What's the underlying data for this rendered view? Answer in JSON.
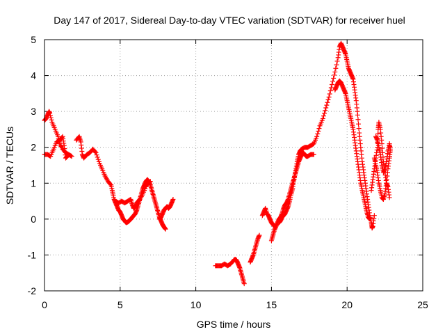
{
  "chart_data": {
    "type": "scatter",
    "title": "Day 147 of 2017, Sidereal Day-to-day VTEC variation (SDTVAR) for receiver huel",
    "xlabel": "GPS time / hours",
    "ylabel": "SDTVAR / TECUs",
    "xlim": [
      0,
      25
    ],
    "ylim": [
      -2,
      5
    ],
    "xticks": [
      0,
      5,
      10,
      15,
      20,
      25
    ],
    "yticks": [
      -2,
      -1,
      0,
      1,
      2,
      3,
      4,
      5
    ],
    "grid": true,
    "marker": "plus",
    "color": "#ff0000",
    "series": [
      {
        "name": "SDTVAR",
        "segments": [
          [
            [
              0.0,
              2.75
            ],
            [
              0.1,
              2.8
            ],
            [
              0.2,
              2.9
            ],
            [
              0.3,
              3.0
            ],
            [
              0.35,
              2.95
            ],
            [
              0.5,
              2.7
            ],
            [
              0.7,
              2.5
            ],
            [
              0.9,
              2.3
            ],
            [
              1.0,
              2.1
            ],
            [
              1.2,
              1.95
            ],
            [
              1.4,
              1.85
            ],
            [
              1.6,
              1.8
            ],
            [
              1.8,
              1.75
            ]
          ],
          [
            [
              0.0,
              1.8
            ],
            [
              0.2,
              1.8
            ],
            [
              0.4,
              1.75
            ],
            [
              0.6,
              1.95
            ],
            [
              0.8,
              2.15
            ],
            [
              1.0,
              2.2
            ],
            [
              1.2,
              2.3
            ],
            [
              1.3,
              2.05
            ],
            [
              1.4,
              1.7
            ],
            [
              1.5,
              1.75
            ]
          ],
          [
            [
              2.1,
              2.2
            ],
            [
              2.3,
              2.3
            ],
            [
              2.4,
              2.15
            ],
            [
              2.5,
              1.8
            ],
            [
              2.6,
              1.7
            ],
            [
              2.8,
              1.8
            ],
            [
              3.0,
              1.85
            ],
            [
              3.2,
              1.95
            ],
            [
              3.4,
              1.85
            ],
            [
              3.6,
              1.6
            ],
            [
              3.8,
              1.4
            ],
            [
              4.0,
              1.2
            ],
            [
              4.2,
              1.05
            ],
            [
              4.4,
              0.95
            ],
            [
              4.5,
              0.75
            ],
            [
              4.6,
              0.55
            ],
            [
              4.7,
              0.45
            ],
            [
              4.8,
              0.35
            ],
            [
              4.9,
              0.25
            ],
            [
              5.0,
              0.2
            ],
            [
              5.1,
              0.1
            ],
            [
              5.2,
              0.0
            ],
            [
              5.3,
              -0.05
            ],
            [
              5.4,
              -0.1
            ],
            [
              5.5,
              -0.08
            ],
            [
              5.6,
              -0.05
            ],
            [
              5.7,
              0.0
            ],
            [
              5.8,
              0.05
            ],
            [
              5.9,
              0.1
            ],
            [
              6.0,
              0.15
            ],
            [
              6.1,
              0.25
            ],
            [
              6.2,
              0.4
            ],
            [
              6.3,
              0.55
            ],
            [
              6.4,
              0.7
            ],
            [
              6.5,
              0.85
            ],
            [
              6.6,
              0.95
            ],
            [
              6.7,
              1.05
            ],
            [
              6.8,
              1.1
            ],
            [
              6.9,
              1.05
            ],
            [
              7.0,
              0.95
            ],
            [
              7.1,
              0.8
            ],
            [
              7.2,
              0.65
            ],
            [
              7.3,
              0.5
            ],
            [
              7.4,
              0.35
            ],
            [
              7.5,
              0.2
            ],
            [
              7.6,
              0.05
            ],
            [
              7.7,
              -0.05
            ],
            [
              7.8,
              -0.15
            ],
            [
              7.9,
              -0.22
            ],
            [
              8.0,
              -0.28
            ]
          ],
          [
            [
              4.7,
              0.5
            ],
            [
              4.9,
              0.45
            ],
            [
              5.1,
              0.5
            ],
            [
              5.3,
              0.45
            ],
            [
              5.5,
              0.5
            ],
            [
              5.7,
              0.55
            ],
            [
              5.8,
              0.4
            ],
            [
              5.9,
              0.3
            ],
            [
              6.0,
              0.35
            ],
            [
              6.1,
              0.45
            ],
            [
              6.2,
              0.5
            ],
            [
              6.3,
              0.55
            ],
            [
              6.5,
              0.7
            ],
            [
              6.7,
              0.9
            ],
            [
              6.8,
              1.0
            ],
            [
              7.0,
              1.05
            ]
          ],
          [
            [
              7.6,
              0.0
            ],
            [
              7.7,
              0.05
            ],
            [
              7.8,
              0.15
            ],
            [
              7.9,
              0.25
            ],
            [
              8.0,
              0.3
            ],
            [
              8.1,
              0.35
            ],
            [
              8.2,
              0.3
            ],
            [
              8.3,
              0.35
            ],
            [
              8.4,
              0.45
            ],
            [
              8.5,
              0.55
            ]
          ],
          [
            [
              11.3,
              -1.3
            ],
            [
              11.5,
              -1.3
            ],
            [
              11.7,
              -1.3
            ],
            [
              11.9,
              -1.25
            ],
            [
              12.1,
              -1.3
            ],
            [
              12.3,
              -1.25
            ],
            [
              12.5,
              -1.15
            ],
            [
              12.6,
              -1.12
            ],
            [
              12.7,
              -1.15
            ],
            [
              12.8,
              -1.25
            ],
            [
              12.9,
              -1.35
            ],
            [
              13.0,
              -1.5
            ],
            [
              13.1,
              -1.65
            ],
            [
              13.2,
              -1.8
            ]
          ],
          [
            [
              13.6,
              -1.2
            ],
            [
              13.7,
              -1.1
            ],
            [
              13.8,
              -1.0
            ],
            [
              13.9,
              -0.85
            ],
            [
              14.0,
              -0.7
            ],
            [
              14.1,
              -0.55
            ],
            [
              14.2,
              -0.45
            ]
          ],
          [
            [
              14.4,
              0.1
            ],
            [
              14.5,
              0.2
            ],
            [
              14.6,
              0.3
            ],
            [
              14.7,
              0.15
            ],
            [
              14.8,
              0.1
            ],
            [
              14.9,
              0.0
            ],
            [
              15.0,
              -0.1
            ],
            [
              15.1,
              -0.15
            ],
            [
              15.2,
              -0.2
            ]
          ],
          [
            [
              15.0,
              -0.6
            ],
            [
              15.1,
              -0.45
            ],
            [
              15.2,
              -0.3
            ],
            [
              15.3,
              -0.2
            ],
            [
              15.4,
              -0.1
            ],
            [
              15.5,
              0.0
            ],
            [
              15.6,
              0.05
            ],
            [
              15.7,
              0.15
            ],
            [
              15.8,
              0.3
            ],
            [
              15.9,
              0.4
            ],
            [
              16.0,
              0.45
            ],
            [
              16.1,
              0.55
            ],
            [
              16.2,
              0.7
            ],
            [
              16.3,
              0.85
            ],
            [
              16.4,
              1.0
            ],
            [
              16.5,
              1.15
            ],
            [
              16.6,
              1.3
            ],
            [
              16.7,
              1.45
            ],
            [
              16.8,
              1.6
            ],
            [
              16.9,
              1.7
            ],
            [
              17.0,
              1.8
            ],
            [
              17.1,
              1.85
            ],
            [
              17.2,
              1.8
            ],
            [
              17.3,
              1.75
            ],
            [
              17.4,
              1.75
            ],
            [
              17.6,
              1.8
            ],
            [
              17.8,
              1.8
            ]
          ],
          [
            [
              15.5,
              -0.1
            ],
            [
              15.6,
              -0.05
            ],
            [
              15.7,
              0.05
            ],
            [
              15.8,
              0.1
            ],
            [
              15.9,
              0.15
            ],
            [
              16.0,
              0.25
            ],
            [
              16.1,
              0.35
            ],
            [
              16.2,
              0.5
            ],
            [
              16.3,
              0.7
            ],
            [
              16.4,
              0.85
            ],
            [
              16.5,
              1.1
            ],
            [
              16.6,
              1.35
            ],
            [
              16.7,
              1.6
            ],
            [
              16.8,
              1.8
            ],
            [
              16.9,
              1.9
            ],
            [
              17.0,
              1.95
            ],
            [
              17.2,
              2.0
            ],
            [
              17.4,
              2.0
            ],
            [
              17.6,
              2.05
            ],
            [
              17.8,
              2.1
            ],
            [
              18.0,
              2.3
            ],
            [
              18.2,
              2.6
            ],
            [
              18.4,
              2.8
            ],
            [
              18.6,
              3.1
            ],
            [
              18.8,
              3.4
            ],
            [
              19.0,
              3.75
            ],
            [
              19.2,
              4.1
            ],
            [
              19.4,
              4.5
            ],
            [
              19.5,
              4.8
            ],
            [
              19.6,
              4.9
            ],
            [
              19.7,
              4.8
            ],
            [
              19.8,
              4.7
            ],
            [
              19.9,
              4.6
            ],
            [
              20.0,
              4.4
            ],
            [
              20.1,
              4.2
            ],
            [
              20.2,
              4.1
            ],
            [
              20.3,
              4.0
            ],
            [
              20.4,
              3.9
            ],
            [
              20.5,
              3.6
            ],
            [
              20.6,
              3.3
            ],
            [
              20.7,
              2.9
            ],
            [
              20.8,
              2.4
            ],
            [
              20.9,
              2.0
            ],
            [
              21.0,
              1.6
            ],
            [
              21.1,
              1.3
            ],
            [
              21.2,
              1.0
            ],
            [
              21.3,
              0.7
            ],
            [
              21.4,
              0.4
            ],
            [
              21.5,
              0.1
            ],
            [
              21.6,
              -0.1
            ],
            [
              21.65,
              -0.25
            ],
            [
              21.7,
              -0.2
            ],
            [
              21.8,
              0.1
            ]
          ],
          [
            [
              19.2,
              3.6
            ],
            [
              19.3,
              3.7
            ],
            [
              19.4,
              3.8
            ],
            [
              19.5,
              3.85
            ],
            [
              19.6,
              3.8
            ],
            [
              19.7,
              3.7
            ],
            [
              19.8,
              3.6
            ],
            [
              19.9,
              3.5
            ],
            [
              20.0,
              3.3
            ],
            [
              20.1,
              3.1
            ],
            [
              20.2,
              2.9
            ],
            [
              20.3,
              2.7
            ],
            [
              20.4,
              2.5
            ],
            [
              20.5,
              2.2
            ],
            [
              20.6,
              1.9
            ],
            [
              20.7,
              1.6
            ],
            [
              20.8,
              1.3
            ],
            [
              20.9,
              1.0
            ],
            [
              21.0,
              0.8
            ],
            [
              21.1,
              0.6
            ],
            [
              21.2,
              0.4
            ],
            [
              21.3,
              0.2
            ],
            [
              21.4,
              0.05
            ],
            [
              21.5,
              0.0
            ]
          ],
          [
            [
              21.6,
              0.8
            ],
            [
              21.7,
              1.1
            ],
            [
              21.8,
              1.4
            ],
            [
              21.9,
              1.7
            ],
            [
              22.0,
              2.0
            ],
            [
              22.05,
              2.5
            ],
            [
              22.1,
              2.7
            ],
            [
              22.2,
              2.5
            ],
            [
              22.3,
              2.1
            ],
            [
              22.4,
              1.6
            ],
            [
              22.5,
              1.3
            ],
            [
              22.6,
              1.0
            ],
            [
              22.7,
              0.9
            ],
            [
              22.8,
              0.6
            ]
          ],
          [
            [
              21.8,
              1.7
            ],
            [
              21.9,
              1.5
            ],
            [
              22.0,
              1.3
            ],
            [
              22.1,
              1.0
            ],
            [
              22.2,
              0.8
            ],
            [
              22.3,
              0.6
            ],
            [
              22.4,
              0.55
            ],
            [
              22.5,
              0.7
            ],
            [
              22.6,
              1.0
            ],
            [
              22.7,
              1.4
            ],
            [
              22.8,
              1.7
            ],
            [
              22.85,
              1.9
            ]
          ],
          [
            [
              21.9,
              2.3
            ],
            [
              22.0,
              2.2
            ],
            [
              22.1,
              2.0
            ],
            [
              22.2,
              1.8
            ],
            [
              22.3,
              1.5
            ],
            [
              22.4,
              1.3
            ],
            [
              22.5,
              1.4
            ],
            [
              22.6,
              1.6
            ],
            [
              22.7,
              1.9
            ],
            [
              22.8,
              2.1
            ],
            [
              22.85,
              1.95
            ]
          ]
        ]
      }
    ]
  }
}
